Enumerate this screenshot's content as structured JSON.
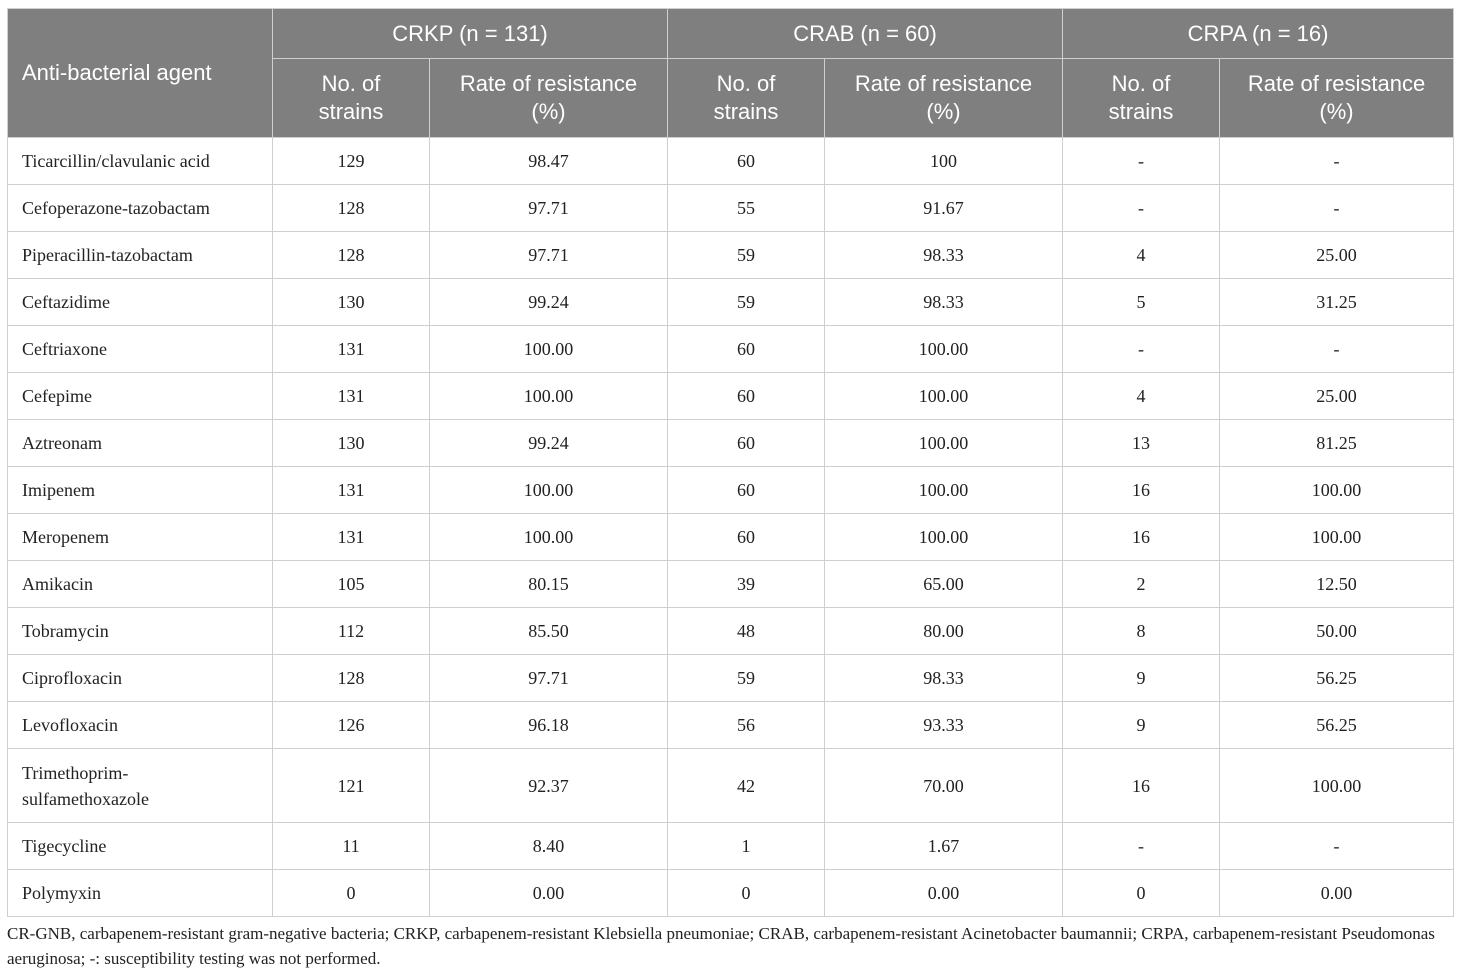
{
  "header": {
    "first": "Anti-bacterial agent",
    "groups": [
      "CRKP (n = 131)",
      "CRAB (n = 60)",
      "CRPA (n = 16)"
    ],
    "subcols": [
      "No. of strains",
      "Rate of resistance (%)",
      "No. of strains",
      "Rate of resistance (%)",
      "No. of strains",
      "Rate of resistance (%)"
    ]
  },
  "table": {
    "rows": [
      [
        "Ticarcillin/clavulanic acid",
        "129",
        "98.47",
        "60",
        "100",
        "-",
        "-"
      ],
      [
        "Cefoperazone-tazobactam",
        "128",
        "97.71",
        "55",
        "91.67",
        "-",
        "-"
      ],
      [
        "Piperacillin-tazobactam",
        "128",
        "97.71",
        "59",
        "98.33",
        "4",
        "25.00"
      ],
      [
        "Ceftazidime",
        "130",
        "99.24",
        "59",
        "98.33",
        "5",
        "31.25"
      ],
      [
        "Ceftriaxone",
        "131",
        "100.00",
        "60",
        "100.00",
        "-",
        "-"
      ],
      [
        "Cefepime",
        "131",
        "100.00",
        "60",
        "100.00",
        "4",
        "25.00"
      ],
      [
        "Aztreonam",
        "130",
        "99.24",
        "60",
        "100.00",
        "13",
        "81.25"
      ],
      [
        "Imipenem",
        "131",
        "100.00",
        "60",
        "100.00",
        "16",
        "100.00"
      ],
      [
        "Meropenem",
        "131",
        "100.00",
        "60",
        "100.00",
        "16",
        "100.00"
      ],
      [
        "Amikacin",
        "105",
        "80.15",
        "39",
        "65.00",
        "2",
        "12.50"
      ],
      [
        "Tobramycin",
        "112",
        "85.50",
        "48",
        "80.00",
        "8",
        "50.00"
      ],
      [
        "Ciprofloxacin",
        "128",
        "97.71",
        "59",
        "98.33",
        "9",
        "56.25"
      ],
      [
        "Levofloxacin",
        "126",
        "96.18",
        "56",
        "93.33",
        "9",
        "56.25"
      ],
      [
        "Trimethoprim-sulfamethoxazole",
        "121",
        "92.37",
        "42",
        "70.00",
        "16",
        "100.00"
      ],
      [
        "Tigecycline",
        "11",
        "8.40",
        "1",
        "1.67",
        "-",
        "-"
      ],
      [
        "Polymyxin",
        "0",
        "0.00",
        "0",
        "0.00",
        "0",
        "0.00"
      ]
    ]
  },
  "footnote": "CR-GNB, carbapenem-resistant gram-negative bacteria; CRKP, carbapenem-resistant Klebsiella pneumoniae; CRAB, carbapenem-resistant Acinetobacter baumannii; CRPA, carbapenem-resistant Pseudomonas aeruginosa; -: susceptibility testing was not performed."
}
